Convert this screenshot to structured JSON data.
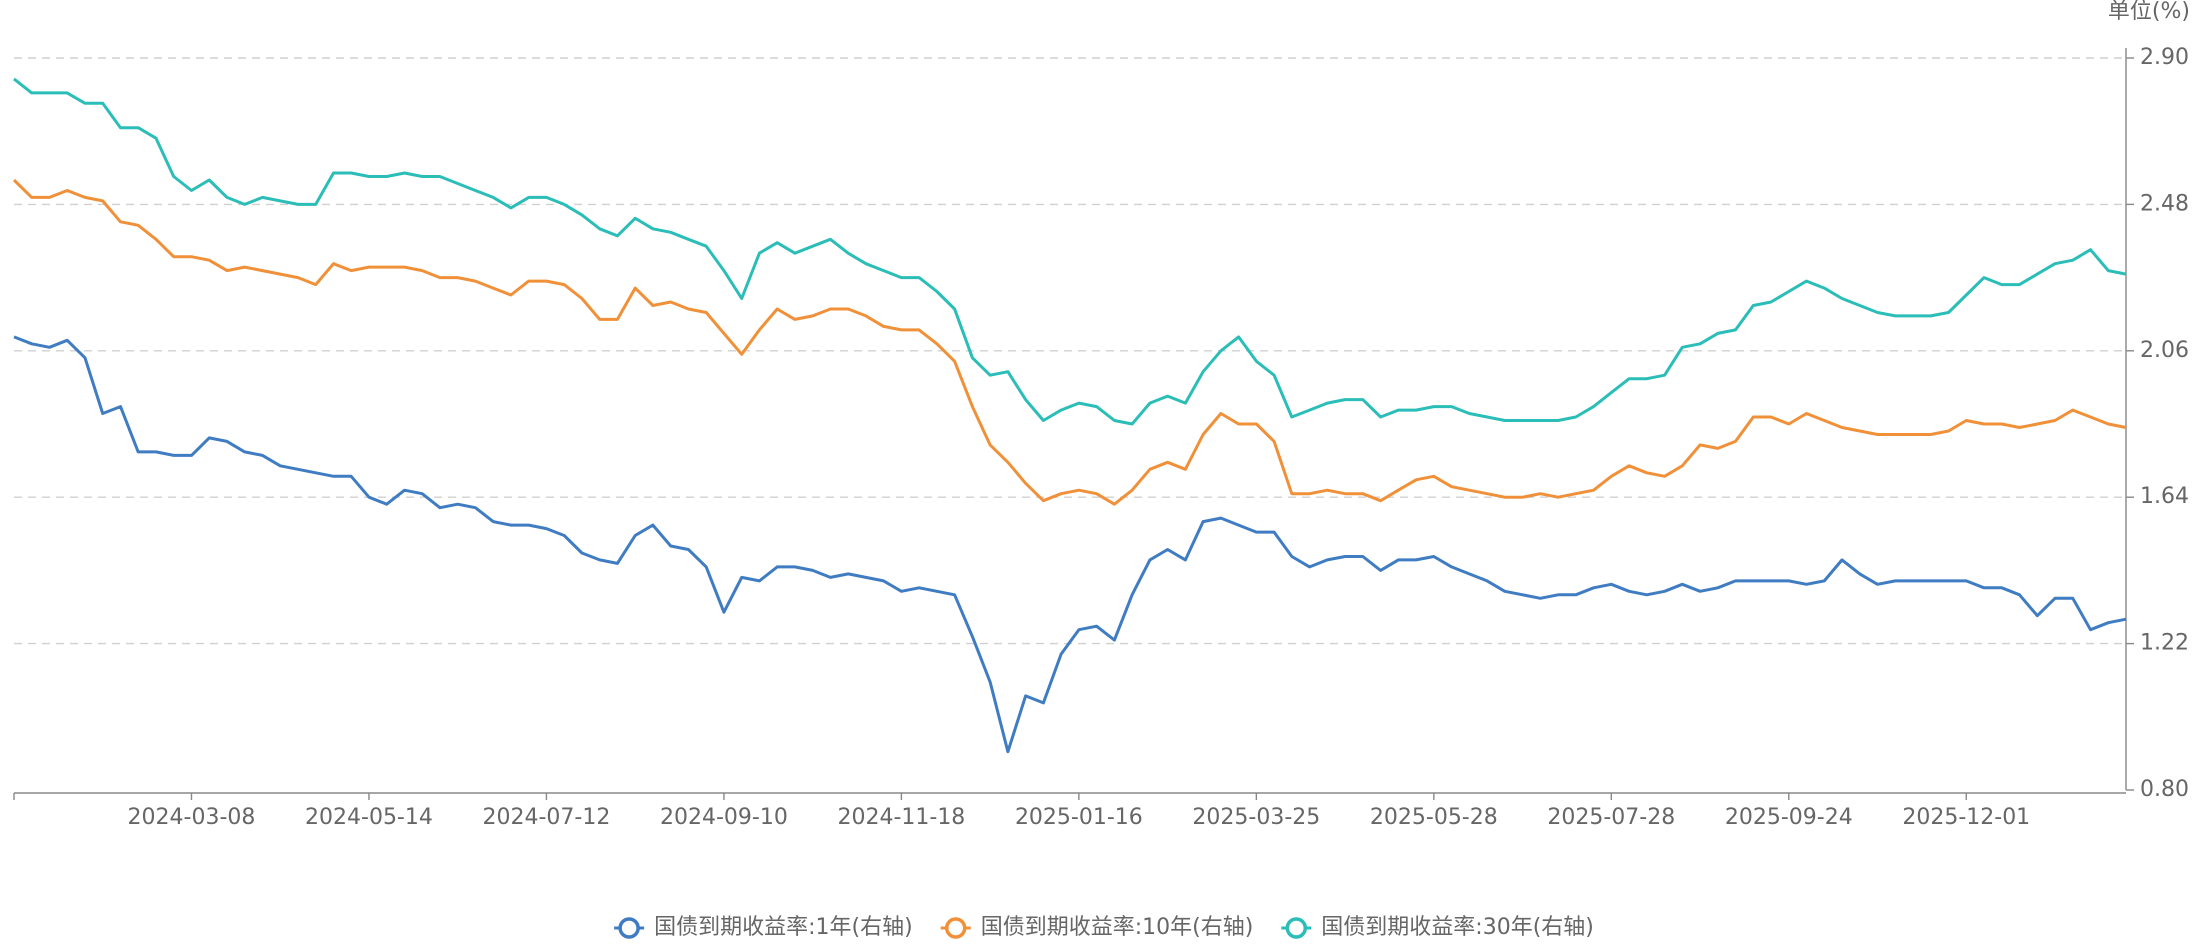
{
  "chart_data": {
    "type": "line",
    "y_label": "单位(%)",
    "categories": [
      null,
      null,
      null,
      null,
      null,
      null,
      null,
      null,
      null,
      null,
      "2024-03-08",
      null,
      null,
      null,
      null,
      null,
      null,
      null,
      null,
      null,
      "2024-05-14",
      null,
      null,
      null,
      null,
      null,
      null,
      null,
      null,
      null,
      "2024-07-12",
      null,
      null,
      null,
      null,
      null,
      null,
      null,
      null,
      null,
      "2024-09-10",
      null,
      null,
      null,
      null,
      null,
      null,
      null,
      null,
      null,
      "2024-11-18",
      null,
      null,
      null,
      null,
      null,
      null,
      null,
      null,
      null,
      "2025-01-16",
      null,
      null,
      null,
      null,
      null,
      null,
      null,
      null,
      null,
      "2025-03-25",
      null,
      null,
      null,
      null,
      null,
      null,
      null,
      null,
      null,
      "2025-05-28",
      null,
      null,
      null,
      null,
      null,
      null,
      null,
      null,
      null,
      "2025-07-28",
      null,
      null,
      null,
      null,
      null,
      null,
      null,
      null,
      null,
      "2025-09-24",
      null,
      null,
      null,
      null,
      null,
      null,
      null,
      null,
      null,
      "2025-12-01",
      null,
      null,
      null,
      null,
      null,
      null,
      null,
      null,
      null
    ],
    "ylim": [
      0.8,
      2.9
    ],
    "yticks": [
      {
        "value": 0.8,
        "label": "0.80"
      },
      1.22,
      1.64,
      2.06,
      2.48,
      {
        "value": 2.9,
        "label": "2.90"
      }
    ],
    "grid": true,
    "axis_side": "right",
    "legend": "bottom",
    "series": [
      {
        "name": "国债到期收益率:1年(右轴)",
        "color": "#3f7cc2",
        "values": [
          2.1,
          2.08,
          2.07,
          2.09,
          2.04,
          1.88,
          1.9,
          1.77,
          1.77,
          1.76,
          1.76,
          1.81,
          1.8,
          1.77,
          1.76,
          1.73,
          1.72,
          1.71,
          1.7,
          1.7,
          1.64,
          1.62,
          1.66,
          1.65,
          1.61,
          1.62,
          1.61,
          1.57,
          1.56,
          1.56,
          1.55,
          1.53,
          1.48,
          1.46,
          1.45,
          1.53,
          1.56,
          1.5,
          1.49,
          1.44,
          1.31,
          1.41,
          1.4,
          1.44,
          1.44,
          1.43,
          1.41,
          1.42,
          1.41,
          1.4,
          1.37,
          1.38,
          1.37,
          1.36,
          1.24,
          1.11,
          0.91,
          1.07,
          1.05,
          1.19,
          1.26,
          1.27,
          1.23,
          1.36,
          1.46,
          1.49,
          1.46,
          1.57,
          1.58,
          1.56,
          1.54,
          1.54,
          1.47,
          1.44,
          1.46,
          1.47,
          1.47,
          1.43,
          1.46,
          1.46,
          1.47,
          1.44,
          1.42,
          1.4,
          1.37,
          1.36,
          1.35,
          1.36,
          1.36,
          1.38,
          1.39,
          1.37,
          1.36,
          1.37,
          1.39,
          1.37,
          1.38,
          1.4,
          1.4,
          1.4,
          1.4,
          1.39,
          1.4,
          1.46,
          1.42,
          1.39,
          1.4,
          1.4,
          1.4,
          1.4,
          1.4,
          1.38,
          1.38,
          1.36,
          1.3,
          1.35,
          1.35,
          1.26,
          1.28,
          1.29
        ]
      },
      {
        "name": "国债到期收益率:10年(右轴)",
        "color": "#f0913a",
        "values": [
          2.55,
          2.5,
          2.5,
          2.52,
          2.5,
          2.49,
          2.43,
          2.42,
          2.38,
          2.33,
          2.33,
          2.32,
          2.29,
          2.3,
          2.29,
          2.28,
          2.27,
          2.25,
          2.31,
          2.29,
          2.3,
          2.3,
          2.3,
          2.29,
          2.27,
          2.27,
          2.26,
          2.24,
          2.22,
          2.26,
          2.26,
          2.25,
          2.21,
          2.15,
          2.15,
          2.24,
          2.19,
          2.2,
          2.18,
          2.17,
          2.11,
          2.05,
          2.12,
          2.18,
          2.15,
          2.16,
          2.18,
          2.18,
          2.16,
          2.13,
          2.12,
          2.12,
          2.08,
          2.03,
          1.9,
          1.79,
          1.74,
          1.68,
          1.63,
          1.65,
          1.66,
          1.65,
          1.62,
          1.66,
          1.72,
          1.74,
          1.72,
          1.82,
          1.88,
          1.85,
          1.85,
          1.8,
          1.65,
          1.65,
          1.66,
          1.65,
          1.65,
          1.63,
          1.66,
          1.69,
          1.7,
          1.67,
          1.66,
          1.65,
          1.64,
          1.64,
          1.65,
          1.64,
          1.65,
          1.66,
          1.7,
          1.73,
          1.71,
          1.7,
          1.73,
          1.79,
          1.78,
          1.8,
          1.87,
          1.87,
          1.85,
          1.88,
          1.86,
          1.84,
          1.83,
          1.82,
          1.82,
          1.82,
          1.82,
          1.83,
          1.86,
          1.85,
          1.85,
          1.84,
          1.85,
          1.86,
          1.89,
          1.87,
          1.85,
          1.84
        ]
      },
      {
        "name": "国债到期收益率:30年(右轴)",
        "color": "#2bbdb7",
        "values": [
          2.84,
          2.8,
          2.8,
          2.8,
          2.77,
          2.77,
          2.7,
          2.7,
          2.67,
          2.56,
          2.52,
          2.55,
          2.5,
          2.48,
          2.5,
          2.49,
          2.48,
          2.48,
          2.57,
          2.57,
          2.56,
          2.56,
          2.57,
          2.56,
          2.56,
          2.54,
          2.52,
          2.5,
          2.47,
          2.5,
          2.5,
          2.48,
          2.45,
          2.41,
          2.39,
          2.44,
          2.41,
          2.4,
          2.38,
          2.36,
          2.29,
          2.21,
          2.34,
          2.37,
          2.34,
          2.36,
          2.38,
          2.34,
          2.31,
          2.29,
          2.27,
          2.27,
          2.23,
          2.18,
          2.04,
          1.99,
          2.0,
          1.92,
          1.86,
          1.89,
          1.91,
          1.9,
          1.86,
          1.85,
          1.91,
          1.93,
          1.91,
          2.0,
          2.06,
          2.1,
          2.03,
          1.99,
          1.87,
          1.89,
          1.91,
          1.92,
          1.92,
          1.87,
          1.89,
          1.89,
          1.9,
          1.9,
          1.88,
          1.87,
          1.86,
          1.86,
          1.86,
          1.86,
          1.87,
          1.9,
          1.94,
          1.98,
          1.98,
          1.99,
          2.07,
          2.08,
          2.11,
          2.12,
          2.19,
          2.2,
          2.23,
          2.26,
          2.24,
          2.21,
          2.19,
          2.17,
          2.16,
          2.16,
          2.16,
          2.17,
          2.22,
          2.27,
          2.25,
          2.25,
          2.28,
          2.31,
          2.32,
          2.35,
          2.29,
          2.28
        ]
      }
    ]
  }
}
